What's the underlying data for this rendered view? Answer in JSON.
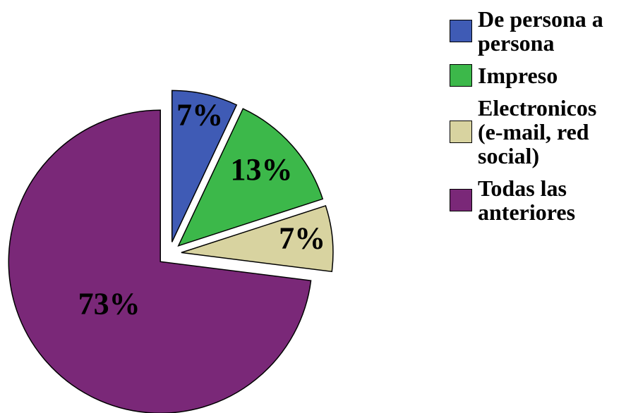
{
  "chart_data": {
    "type": "pie",
    "categories": [
      "De persona a persona",
      "Impreso",
      "Electronicos (e-mail, red social)",
      "Todas las anteriores"
    ],
    "values": [
      7,
      13,
      7,
      73
    ],
    "value_labels": [
      "7%",
      "13%",
      "7%",
      "73%"
    ],
    "colors": [
      "#3f5bb5",
      "#3cb84a",
      "#d8d3a0",
      "#7a2878"
    ],
    "legend": "right"
  }
}
